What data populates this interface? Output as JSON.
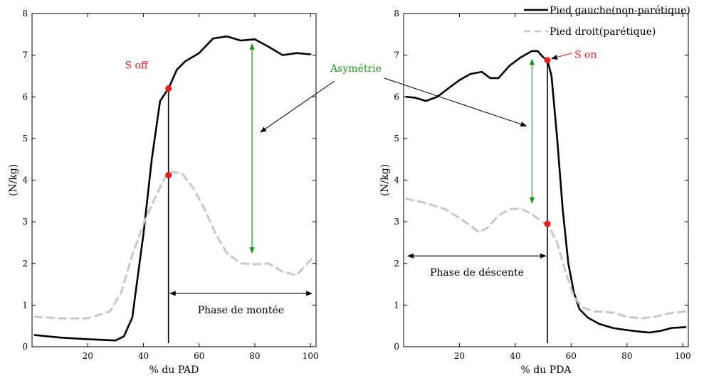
{
  "chart_data": [
    {
      "type": "line",
      "xlabel": "% du PAD",
      "ylabel": "(N/kg)",
      "xlim": [
        0,
        102
      ],
      "ylim": [
        0,
        8
      ],
      "xticks": [
        "20",
        "40",
        "60",
        "80",
        "100"
      ],
      "yticks": [
        "0",
        "1",
        "2",
        "3",
        "4",
        "5",
        "6",
        "7",
        "8"
      ],
      "series": [
        {
          "name": "Pied gauche(non-parétique)",
          "color": "#000000",
          "style": "solid",
          "x": [
            1,
            10,
            20,
            30,
            33,
            36,
            40,
            43,
            46,
            49,
            52,
            55,
            60,
            65,
            70,
            75,
            80,
            85,
            90,
            95,
            100
          ],
          "y": [
            0.28,
            0.22,
            0.18,
            0.15,
            0.25,
            0.7,
            2.7,
            4.5,
            5.9,
            6.2,
            6.65,
            6.85,
            7.05,
            7.4,
            7.45,
            7.35,
            7.38,
            7.2,
            7.0,
            7.05,
            7.02
          ]
        },
        {
          "name": "Pied droit(parétique)",
          "color": "#c8c8c8",
          "style": "dashed",
          "x": [
            1,
            10,
            20,
            28,
            32,
            36,
            40,
            44,
            48,
            50,
            54,
            58,
            62,
            66,
            70,
            75,
            80,
            85,
            90,
            95,
            101
          ],
          "y": [
            0.72,
            0.68,
            0.68,
            0.85,
            1.3,
            2.2,
            2.95,
            3.55,
            4.1,
            4.2,
            4.15,
            3.8,
            3.3,
            2.7,
            2.25,
            2.0,
            1.98,
            2.0,
            1.8,
            1.72,
            2.15
          ]
        }
      ],
      "markers": [
        {
          "x": 49,
          "y": 6.2,
          "color": "#e8201c"
        },
        {
          "x": 49,
          "y": 4.12,
          "color": "#e8201c"
        }
      ],
      "event_line_x": 49,
      "annotations": {
        "event_label": "S off",
        "phase_label": "Phase de montée",
        "phase_range": [
          49,
          101
        ],
        "asymmetry_range": [
          2.25,
          7.27
        ],
        "asymmetry_x": 79
      }
    },
    {
      "type": "line",
      "xlabel": "% du PDA",
      "ylabel": "(N/kg)",
      "xlim": [
        0,
        102
      ],
      "ylim": [
        0,
        8
      ],
      "xticks": [
        "20",
        "40",
        "60",
        "80",
        "100"
      ],
      "yticks": [
        "0",
        "1",
        "2",
        "3",
        "4",
        "5",
        "6",
        "7",
        "8"
      ],
      "series": [
        {
          "name": "Pied gauche(non-parétique)",
          "color": "#000000",
          "style": "solid",
          "x": [
            1,
            4,
            8,
            12,
            16,
            20,
            24,
            28,
            31,
            34,
            38,
            42,
            46,
            48,
            50,
            51.5,
            53,
            55,
            57,
            59,
            61,
            63,
            66,
            70,
            75,
            80,
            85,
            88,
            92,
            96,
            101
          ],
          "y": [
            6.0,
            5.98,
            5.9,
            6.0,
            6.2,
            6.4,
            6.55,
            6.6,
            6.45,
            6.45,
            6.75,
            6.95,
            7.1,
            7.1,
            6.95,
            6.88,
            6.5,
            5.0,
            3.3,
            2.0,
            1.3,
            0.9,
            0.7,
            0.55,
            0.45,
            0.4,
            0.36,
            0.34,
            0.38,
            0.45,
            0.47
          ]
        },
        {
          "name": "Pied droit(parétique)",
          "color": "#c8c8c8",
          "style": "dashed",
          "x": [
            1,
            8,
            15,
            22,
            27,
            30,
            34,
            38,
            42,
            46,
            50,
            52,
            55,
            58,
            61,
            64,
            68,
            75,
            80,
            85,
            90,
            95,
            101
          ],
          "y": [
            3.55,
            3.45,
            3.3,
            3.0,
            2.75,
            2.85,
            3.15,
            3.3,
            3.32,
            3.18,
            2.98,
            2.9,
            2.5,
            1.8,
            1.2,
            0.95,
            0.85,
            0.82,
            0.72,
            0.68,
            0.72,
            0.8,
            0.85
          ]
        }
      ],
      "markers": [
        {
          "x": 51.5,
          "y": 6.88,
          "color": "#e8201c"
        },
        {
          "x": 51.5,
          "y": 2.95,
          "color": "#e8201c"
        }
      ],
      "event_line_x": 51.5,
      "annotations": {
        "event_label": "S on",
        "phase_label": "Phase de déscente",
        "phase_range": [
          1,
          51.5
        ],
        "asymmetry_range": [
          3.45,
          6.9
        ],
        "asymmetry_x": 46
      }
    }
  ],
  "shared": {
    "asymmetry_label": "Asymétrie",
    "legend": {
      "placement": "top-right",
      "entries": [
        "Pied gauche(non-parétique)",
        "Pied droit(parétique)"
      ]
    },
    "colors": {
      "left_foot": "#000000",
      "right_foot": "#c8c8c8",
      "event_marker": "#e8201c",
      "asymmetry": "#1a9a1a"
    }
  }
}
